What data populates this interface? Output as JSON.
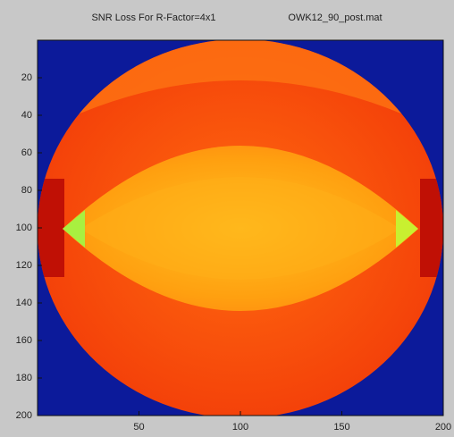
{
  "chart_data": {
    "type": "image",
    "title": "SNR Loss For R-Factor=4x1",
    "subtitle": "OWK12_90_post.mat",
    "xlim": [
      0,
      200
    ],
    "xticks": [
      50,
      100,
      150,
      200
    ],
    "ylim": [
      0,
      200
    ],
    "yticks": [
      20,
      40,
      60,
      80,
      100,
      120,
      140,
      160,
      180,
      200
    ]
  }
}
